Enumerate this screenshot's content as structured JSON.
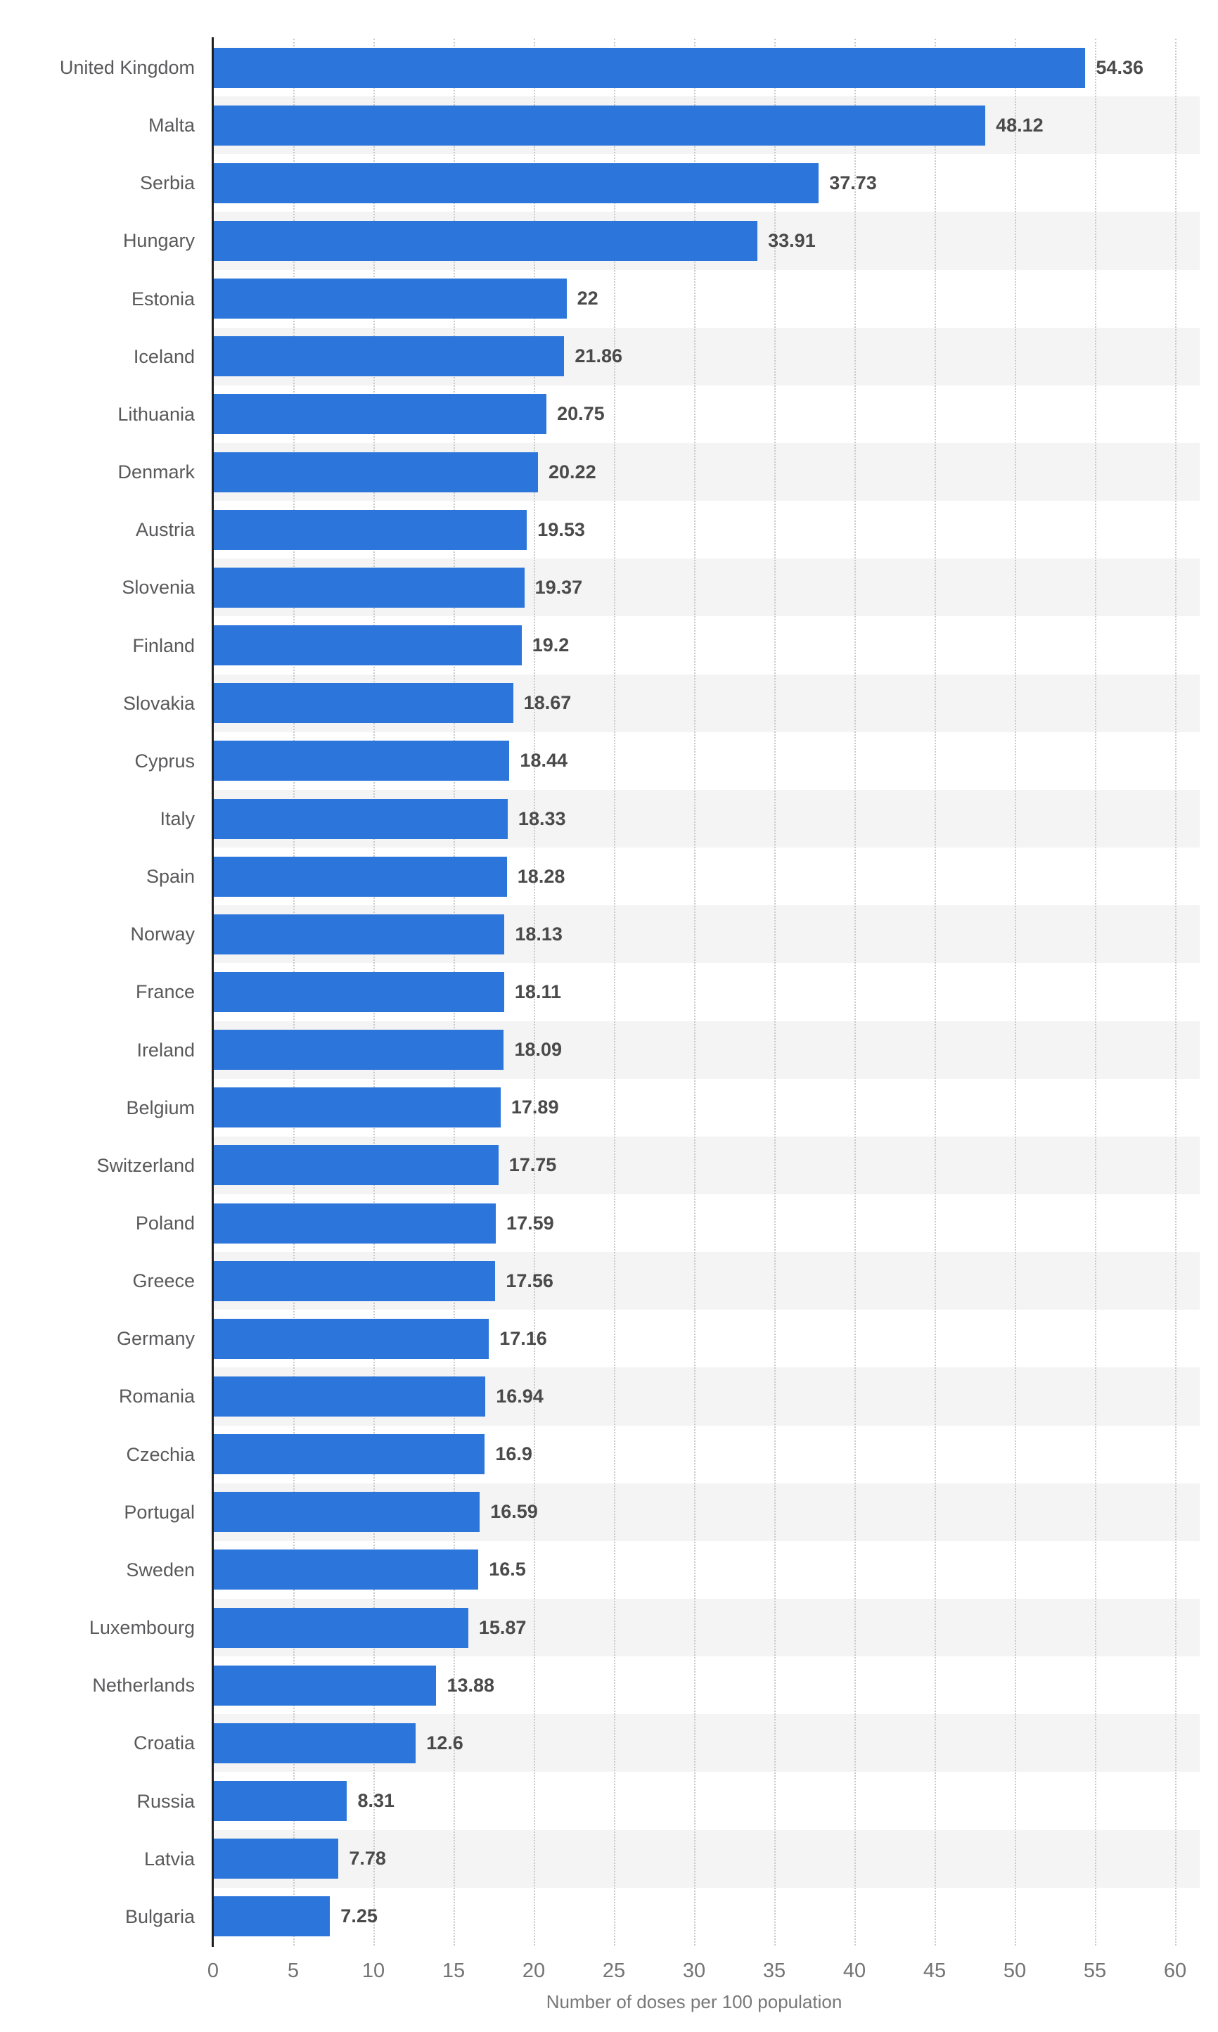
{
  "chart_data": {
    "type": "bar",
    "orientation": "horizontal",
    "title": "",
    "xlabel": "Number of doses per 100 population",
    "ylabel": "",
    "xlim": [
      0,
      60
    ],
    "x_ticks": [
      0,
      5,
      10,
      15,
      20,
      25,
      30,
      35,
      40,
      45,
      50,
      55,
      60
    ],
    "grid": "vertical-dotted",
    "legend": "none",
    "bar_color": "#2c76db",
    "categories": [
      "United Kingdom",
      "Malta",
      "Serbia",
      "Hungary",
      "Estonia",
      "Iceland",
      "Lithuania",
      "Denmark",
      "Austria",
      "Slovenia",
      "Finland",
      "Slovakia",
      "Cyprus",
      "Italy",
      "Spain",
      "Norway",
      "France",
      "Ireland",
      "Belgium",
      "Switzerland",
      "Poland",
      "Greece",
      "Germany",
      "Romania",
      "Czechia",
      "Portugal",
      "Sweden",
      "Luxembourg",
      "Netherlands",
      "Croatia",
      "Russia",
      "Latvia",
      "Bulgaria"
    ],
    "values": [
      54.36,
      48.12,
      37.73,
      33.91,
      22,
      21.86,
      20.75,
      20.22,
      19.53,
      19.37,
      19.2,
      18.67,
      18.44,
      18.33,
      18.28,
      18.13,
      18.11,
      18.09,
      17.89,
      17.75,
      17.59,
      17.56,
      17.16,
      16.94,
      16.9,
      16.59,
      16.5,
      15.87,
      13.88,
      12.6,
      8.31,
      7.78,
      7.25
    ],
    "value_labels": [
      "54.36",
      "48.12",
      "37.73",
      "33.91",
      "22",
      "21.86",
      "20.75",
      "20.22",
      "19.53",
      "19.37",
      "19.2",
      "18.67",
      "18.44",
      "18.33",
      "18.28",
      "18.13",
      "18.11",
      "18.09",
      "17.89",
      "17.75",
      "17.59",
      "17.56",
      "17.16",
      "16.94",
      "16.9",
      "16.59",
      "16.5",
      "15.87",
      "13.88",
      "12.6",
      "8.31",
      "7.78",
      "7.25"
    ]
  }
}
